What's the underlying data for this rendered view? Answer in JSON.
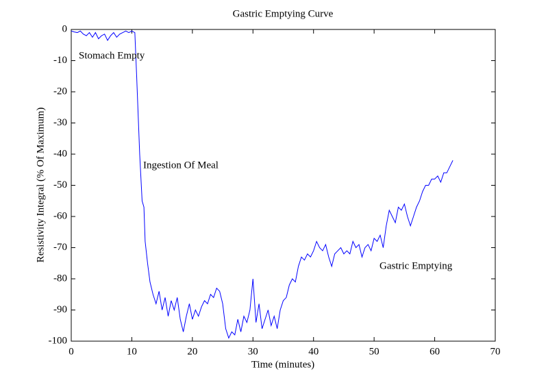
{
  "chart_data": {
    "type": "line",
    "title": "Gastric Emptying Curve",
    "xlabel": "Time (minutes)",
    "ylabel": "Resistivity Integral (% Of Maximum)",
    "xlim": [
      0,
      70
    ],
    "xticks": [
      0,
      10,
      20,
      30,
      40,
      50,
      60,
      70
    ],
    "ylim": [
      -100,
      0
    ],
    "yticks": [
      0,
      -10,
      -20,
      -30,
      -40,
      -50,
      -60,
      -70,
      -80,
      -90,
      -100
    ],
    "annotations": [
      "Stomach Empty",
      "Ingestion Of Meal",
      "Gastric Emptying"
    ],
    "x": [
      0,
      0.5,
      1,
      1.5,
      2,
      2.5,
      3,
      3.5,
      4,
      4.5,
      5,
      5.5,
      6,
      6.5,
      7,
      7.5,
      8,
      8.5,
      9,
      9.5,
      10,
      10.5,
      10.8,
      11,
      11.3,
      11.7,
      12,
      12.2,
      12.6,
      13,
      13.5,
      14,
      14.5,
      15,
      15.5,
      16,
      16.5,
      17,
      17.5,
      18,
      18.5,
      19,
      19.5,
      20,
      20.5,
      21,
      21.5,
      22,
      22.5,
      23,
      23.5,
      24,
      24.5,
      25,
      25.5,
      26,
      26.5,
      27,
      27.5,
      28,
      28.5,
      29,
      29.5,
      30,
      30.5,
      31,
      31.5,
      32,
      32.5,
      33,
      33.5,
      34,
      34.5,
      35,
      35.5,
      36,
      36.5,
      37,
      37.5,
      38,
      38.5,
      39,
      39.5,
      40,
      40.5,
      41,
      41.5,
      42,
      42.5,
      43,
      43.5,
      44,
      44.5,
      45,
      45.5,
      46,
      46.5,
      47,
      47.5,
      48,
      48.5,
      49,
      49.5,
      50,
      50.5,
      51,
      51.5,
      52,
      52.5,
      53,
      53.5,
      54,
      54.5,
      55,
      55.5,
      56,
      56.5,
      57,
      57.5,
      58,
      58.5,
      59,
      59.5,
      60,
      60.5,
      61,
      61.5,
      62,
      62.5,
      63
    ],
    "series": [
      {
        "color": "#0000ff",
        "values": [
          -0.5,
          -0.8,
          -1,
          -0.5,
          -1.5,
          -2,
          -1,
          -2.5,
          -1,
          -3,
          -2,
          -1.5,
          -3.5,
          -2,
          -1,
          -2.5,
          -1.5,
          -1,
          -0.5,
          -1,
          -0.5,
          -1,
          -15,
          -25,
          -40,
          -55,
          -57,
          -68,
          -75,
          -81,
          -85,
          -88,
          -84,
          -90,
          -86,
          -92,
          -87,
          -90,
          -86,
          -93,
          -97,
          -92,
          -88,
          -93,
          -90,
          -92,
          -89,
          -87,
          -88,
          -85,
          -86,
          -83,
          -84,
          -88,
          -96,
          -99,
          -97,
          -98,
          -93,
          -97,
          -92,
          -94,
          -90,
          -80,
          -94,
          -88,
          -96,
          -93,
          -90,
          -95,
          -92,
          -96,
          -90,
          -87,
          -86,
          -82,
          -80,
          -81,
          -76,
          -73,
          -74,
          -72,
          -73,
          -71,
          -68,
          -70,
          -71,
          -69,
          -73,
          -76,
          -72,
          -71,
          -70,
          -72,
          -71,
          -72,
          -68,
          -70,
          -69,
          -73,
          -70,
          -69,
          -71,
          -67,
          -68,
          -66,
          -70,
          -63,
          -58,
          -60,
          -62,
          -57,
          -58,
          -56,
          -60,
          -63,
          -60,
          -57,
          -55,
          -52,
          -50,
          -50,
          -48,
          -48,
          -47,
          -49,
          -46,
          -46,
          -44,
          -42
        ]
      }
    ]
  }
}
